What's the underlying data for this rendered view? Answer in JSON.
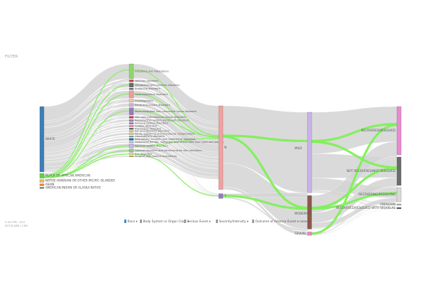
{
  "header": {
    "filter_label": "FILTER:"
  },
  "corner_info": {
    "line1": "Z-05  FPM · 3/22",
    "line2": "ROTIQ ABB / 1381"
  },
  "legend": {
    "items": [
      {
        "label": "Race ▾",
        "color": "#4d8ec4"
      },
      {
        "label": "Body System or Organ Class ▾",
        "color": "#9aa0a8"
      },
      {
        "label": "Serious Event ▾",
        "color": "#9aa0a8"
      },
      {
        "label": "Severity/Intensity ▾",
        "color": "#9aa0a8"
      },
      {
        "label": "Outcome of Adverse Event ▾  none ▾",
        "color": "#9aa0a8"
      }
    ]
  },
  "chart_data": {
    "type": "sankey",
    "columns": [
      "Race",
      "Body System or Organ Class",
      "Serious Event",
      "Severity/Intensity",
      "Outcome of Adverse Event"
    ],
    "colors": {
      "flow": "#d4d4d4",
      "highlight": "#7ff05a"
    },
    "nodes": [
      {
        "id": "white",
        "label": "WHITE",
        "column": 0,
        "value": 100,
        "color": "#3a7fb8"
      },
      {
        "id": "black",
        "label": "BLACK OR AFRICAN AMERICAN",
        "column": 0,
        "value": 7,
        "color": "#5fd24a"
      },
      {
        "id": "nhopi",
        "label": "NATIVE HAWAIIAN OR OTHER PACIFIC ISLANDER",
        "column": 0,
        "value": 4,
        "color": "#f2b84b"
      },
      {
        "id": "asian",
        "label": "ASIAN",
        "column": 0,
        "value": 3,
        "color": "#e9833a"
      },
      {
        "id": "aian",
        "label": "AMERICAN INDIAN OR ALASKA NATIVE",
        "column": 0,
        "value": 1,
        "color": "#555555"
      },
      {
        "id": "infect",
        "label": "Infections and infestations",
        "column": 1,
        "value": 14,
        "color": "#8cd96a"
      },
      {
        "id": "vasc",
        "label": "Vascular disorders",
        "column": 1,
        "value": 2,
        "color": "#d4413a"
      },
      {
        "id": "metab",
        "label": "Metabolism and nutrition disorders",
        "column": 1,
        "value": 4,
        "color": "#6b6b6b"
      },
      {
        "id": "endo",
        "label": "Endocrine disorders",
        "column": 1,
        "value": 1,
        "color": "#3a3a3a"
      },
      {
        "id": "gastro",
        "label": "Gastrointestinal disorders",
        "column": 1,
        "value": 7,
        "color": "#f29a9a"
      },
      {
        "id": "invest",
        "label": "Investigations",
        "column": 1,
        "value": 3,
        "color": "#f0c39a"
      },
      {
        "id": "renal",
        "label": "Renal and urinary disorders",
        "column": 1,
        "value": 3,
        "color": "#c9b3d9"
      },
      {
        "id": "musc",
        "label": "Musculoskeletal and connective tissue disorders",
        "column": 1,
        "value": 7,
        "color": "#9b7ac4"
      },
      {
        "id": "skin",
        "label": "Skin and subcutaneous tissue disorders",
        "column": 1,
        "value": 2,
        "color": "#d63a3a"
      },
      {
        "id": "repro",
        "label": "Reproductive system and breast disorders",
        "column": 1,
        "value": 2,
        "color": "#b07ac4"
      },
      {
        "id": "immune",
        "label": "Immune system disorders",
        "column": 1,
        "value": 1,
        "color": "#7a4a2a"
      },
      {
        "id": "cardiac",
        "label": "Cardiac disorders",
        "column": 1,
        "value": 2,
        "color": "#e98ac4"
      },
      {
        "id": "psych",
        "label": "Psychiatric disorders",
        "column": 1,
        "value": 1,
        "color": "#3a3a3a"
      },
      {
        "id": "ear",
        "label": "Ear and labyrinth disorders",
        "column": 1,
        "value": 1,
        "color": "#b5b58a"
      },
      {
        "id": "injury",
        "label": "Injury, poisoning and procedural complications",
        "column": 1,
        "value": 2,
        "color": "#e6d24a"
      },
      {
        "id": "hepato",
        "label": "Hepatobiliary disorders",
        "column": 1,
        "value": 1,
        "color": "#4aa0b5"
      },
      {
        "id": "resp",
        "label": "Respiratory, thoracic and mediastinal disorders",
        "column": 1,
        "value": 2,
        "color": "#2a6b9b"
      },
      {
        "id": "neopl",
        "label": "Neoplasms benign, malignant and unspecified (incl cysts and polyps)",
        "column": 1,
        "value": 1,
        "color": "#8ac4e9"
      },
      {
        "id": "nerv",
        "label": "Nervous system disorders",
        "column": 1,
        "value": 4,
        "color": "#c9b3e9"
      },
      {
        "id": "general",
        "label": "General disorders and administration site conditions",
        "column": 1,
        "value": 3,
        "color": "#9ac48a"
      },
      {
        "id": "eye",
        "label": "Eye disorders",
        "column": 1,
        "value": 1,
        "color": "#e6d24a"
      },
      {
        "id": "surg",
        "label": "Surgical and medical procedures",
        "column": 1,
        "value": 1,
        "color": "#c9b34a"
      },
      {
        "id": "sN",
        "label": "N",
        "column": 2,
        "value": 70,
        "color": "#f2a0a0"
      },
      {
        "id": "sY",
        "label": "Y",
        "column": 2,
        "value": 4,
        "color": "#9b7ac4"
      },
      {
        "id": "mild",
        "label": "MILD",
        "column": 3,
        "value": 48,
        "color": "#c9b3e9"
      },
      {
        "id": "moderate",
        "label": "MODERATE",
        "column": 3,
        "value": 20,
        "color": "#8c5a4a"
      },
      {
        "id": "severe",
        "label": "SEVERE",
        "column": 3,
        "value": 2,
        "color": "#e98ac4"
      },
      {
        "id": "recovered",
        "label": "RECOVERED/RESOLVED",
        "column": 4,
        "value": 34,
        "color": "#e98ad4"
      },
      {
        "id": "notrecov",
        "label": "NOT RECOVERED/NOT RESOLVED",
        "column": 4,
        "value": 20,
        "color": "#6b6b6b"
      },
      {
        "id": "recovering",
        "label": "RECOVERING/RESOLVING",
        "column": 4,
        "value": 10,
        "color": "#d9d9d9"
      },
      {
        "id": "unknown",
        "label": "UNKNOWN",
        "column": 4,
        "value": 1,
        "color": "#b5b5b5"
      },
      {
        "id": "sequelae",
        "label": "RECOVERED/RESOLVED WITH SEQUELAE",
        "column": 4,
        "value": 1,
        "color": "#555555"
      }
    ],
    "highlighted_links": [
      {
        "source": "black",
        "target": "infect"
      },
      {
        "source": "black",
        "target": "metab"
      },
      {
        "source": "black",
        "target": "gastro"
      },
      {
        "source": "black",
        "target": "musc"
      },
      {
        "source": "black",
        "target": "nerv"
      },
      {
        "source": "black",
        "target": "general"
      },
      {
        "source": "black",
        "target": "eye"
      },
      {
        "source": "infect",
        "target": "sN"
      },
      {
        "source": "musc",
        "target": "sN"
      },
      {
        "source": "gastro",
        "target": "sN"
      },
      {
        "source": "nerv",
        "target": "sN"
      },
      {
        "source": "eye",
        "target": "sY"
      },
      {
        "source": "sN",
        "target": "mild"
      },
      {
        "source": "sN",
        "target": "moderate"
      },
      {
        "source": "sY",
        "target": "moderate"
      },
      {
        "source": "mild",
        "target": "recovered"
      },
      {
        "source": "mild",
        "target": "notrecov"
      },
      {
        "source": "moderate",
        "target": "notrecov"
      },
      {
        "source": "moderate",
        "target": "recovering"
      },
      {
        "source": "severe",
        "target": "recovered"
      }
    ]
  }
}
